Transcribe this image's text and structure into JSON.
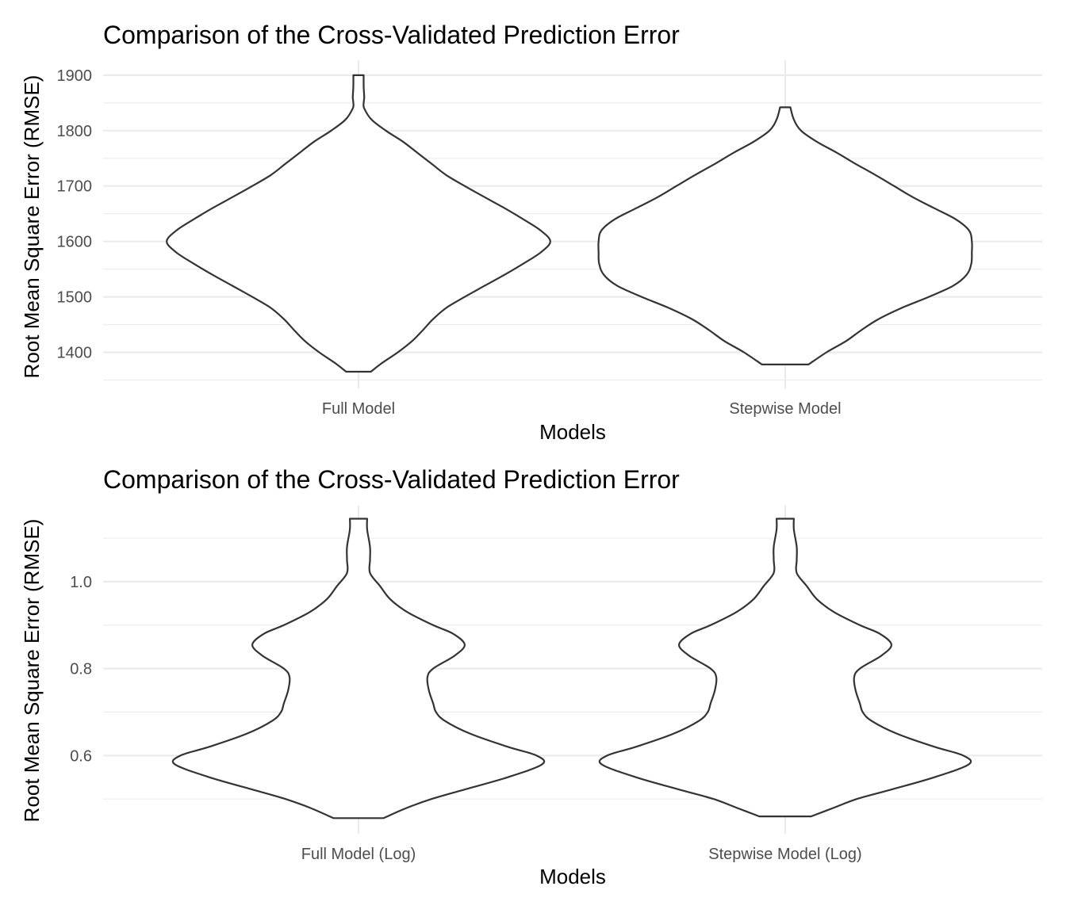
{
  "chart_data": [
    {
      "type": "violin",
      "title": "Comparison of the Cross-Validated Prediction Error",
      "xlabel": "Models",
      "ylabel": "Root Mean Square Error (RMSE)",
      "categories": [
        "Full Model",
        "Stepwise Model"
      ],
      "y_ticks": [
        "1400",
        "1500",
        "1600",
        "1700",
        "1800",
        "1900"
      ],
      "y_tick_values": [
        1400,
        1500,
        1600,
        1700,
        1800,
        1900
      ],
      "ylim": [
        1335,
        1927
      ],
      "grid": true,
      "violins": [
        {
          "category": "Full Model",
          "y": [
            1365,
            1380,
            1400,
            1420,
            1440,
            1460,
            1480,
            1500,
            1520,
            1540,
            1560,
            1580,
            1600,
            1620,
            1640,
            1660,
            1680,
            1700,
            1720,
            1740,
            1760,
            1780,
            1800,
            1820,
            1840,
            1850,
            1860,
            1880,
            1900
          ],
          "half_width": [
            0.043,
            0.08,
            0.137,
            0.186,
            0.224,
            0.26,
            0.305,
            0.37,
            0.439,
            0.509,
            0.574,
            0.634,
            0.668,
            0.634,
            0.574,
            0.509,
            0.439,
            0.37,
            0.305,
            0.255,
            0.205,
            0.155,
            0.095,
            0.045,
            0.02,
            0.018,
            0.02,
            0.018,
            0.018
          ]
        },
        {
          "category": "Stepwise Model",
          "y": [
            1378,
            1400,
            1420,
            1440,
            1460,
            1480,
            1500,
            1520,
            1540,
            1560,
            1580,
            1600,
            1620,
            1640,
            1660,
            1680,
            1700,
            1720,
            1740,
            1760,
            1780,
            1800,
            1820,
            1842
          ],
          "half_width": [
            0.081,
            0.144,
            0.211,
            0.265,
            0.325,
            0.405,
            0.5,
            0.585,
            0.632,
            0.648,
            0.65,
            0.65,
            0.64,
            0.594,
            0.519,
            0.444,
            0.379,
            0.314,
            0.245,
            0.18,
            0.11,
            0.055,
            0.03,
            0.018
          ]
        }
      ]
    },
    {
      "type": "violin",
      "title": "Comparison of the Cross-Validated Prediction Error",
      "xlabel": "Models",
      "ylabel": "Root Mean Square Error (RMSE)",
      "categories": [
        "Full Model (Log)",
        "Stepwise Model (Log)"
      ],
      "y_ticks": [
        "0.6",
        "0.8",
        "1.0"
      ],
      "y_tick_values": [
        0.6,
        0.8,
        1.0
      ],
      "ylim": [
        0.42,
        1.175
      ],
      "grid": true,
      "violins": [
        {
          "category": "Full Model (Log)",
          "y": [
            0.456,
            0.48,
            0.5,
            0.52,
            0.55,
            0.58,
            0.6,
            0.62,
            0.65,
            0.68,
            0.7,
            0.72,
            0.75,
            0.78,
            0.8,
            0.83,
            0.855,
            0.88,
            0.9,
            0.93,
            0.96,
            0.99,
            1.02,
            1.05,
            1.08,
            1.12,
            1.145
          ],
          "half_width": [
            0.087,
            0.17,
            0.255,
            0.36,
            0.52,
            0.64,
            0.62,
            0.52,
            0.39,
            0.3,
            0.27,
            0.26,
            0.245,
            0.24,
            0.26,
            0.335,
            0.37,
            0.33,
            0.26,
            0.17,
            0.11,
            0.075,
            0.04,
            0.04,
            0.04,
            0.03,
            0.03
          ]
        },
        {
          "category": "Stepwise Model (Log)",
          "y": [
            0.46,
            0.48,
            0.5,
            0.52,
            0.55,
            0.58,
            0.6,
            0.62,
            0.65,
            0.68,
            0.7,
            0.72,
            0.75,
            0.78,
            0.8,
            0.83,
            0.855,
            0.88,
            0.9,
            0.93,
            0.96,
            0.99,
            1.02,
            1.05,
            1.08,
            1.12,
            1.145
          ],
          "half_width": [
            0.09,
            0.17,
            0.25,
            0.36,
            0.52,
            0.64,
            0.62,
            0.52,
            0.39,
            0.3,
            0.27,
            0.26,
            0.245,
            0.24,
            0.26,
            0.335,
            0.37,
            0.33,
            0.26,
            0.17,
            0.11,
            0.075,
            0.04,
            0.04,
            0.04,
            0.03,
            0.03
          ]
        }
      ]
    }
  ]
}
